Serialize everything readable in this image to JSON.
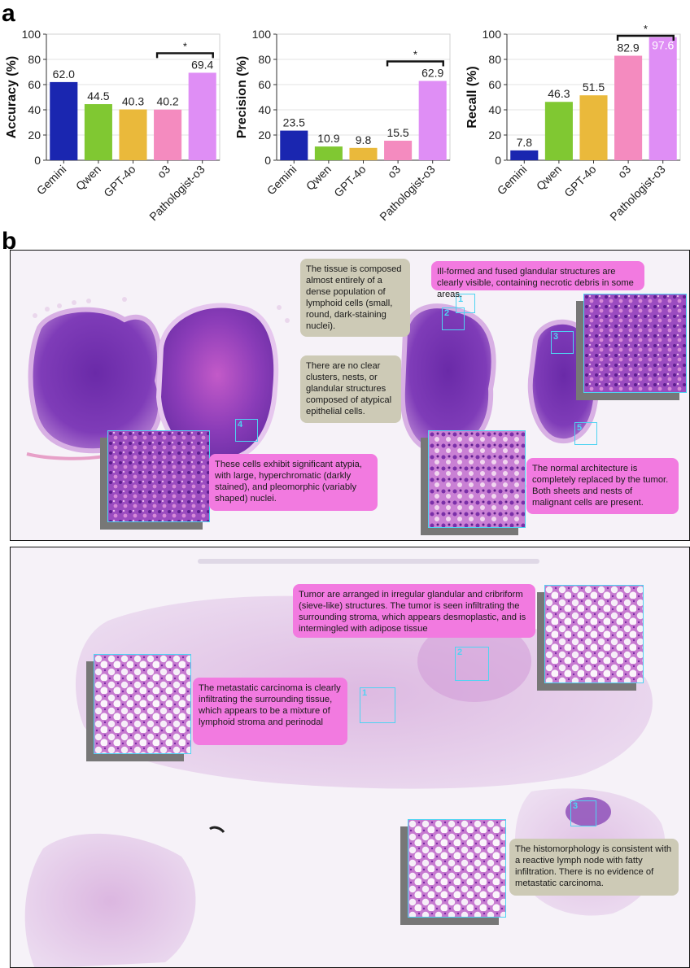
{
  "panels": {
    "a": "a",
    "b": "b"
  },
  "chart_data": [
    {
      "type": "bar",
      "categories": [
        "Gemini",
        "Qwen",
        "GPT-4o",
        "o3",
        "Pathologist-o3"
      ],
      "values": [
        62.0,
        44.5,
        40.3,
        40.2,
        69.4
      ],
      "value_labels": [
        "62.0",
        "44.5",
        "40.3",
        "40.2",
        "69.4"
      ],
      "ylabel": "Accuracy (%)",
      "ylim": [
        0,
        100
      ],
      "yticks": [
        "0",
        "20",
        "40",
        "60",
        "80",
        "100"
      ],
      "grid": true,
      "colors": [
        "#1a26b0",
        "#80c832",
        "#eab93b",
        "#f48bbf",
        "#df8ef5"
      ],
      "significance": {
        "from": 3,
        "to": 4,
        "label": "*"
      }
    },
    {
      "type": "bar",
      "categories": [
        "Gemini",
        "Qwen",
        "GPT-4o",
        "o3",
        "Pathologist-o3"
      ],
      "values": [
        23.5,
        10.9,
        9.8,
        15.5,
        62.9
      ],
      "value_labels": [
        "23.5",
        "10.9",
        "9.8",
        "15.5",
        "62.9"
      ],
      "ylabel": "Precision (%)",
      "ylim": [
        0,
        100
      ],
      "yticks": [
        "0",
        "20",
        "40",
        "60",
        "80",
        "100"
      ],
      "grid": true,
      "colors": [
        "#1a26b0",
        "#80c832",
        "#eab93b",
        "#f48bbf",
        "#df8ef5"
      ],
      "significance": {
        "from": 3,
        "to": 4,
        "label": "*"
      }
    },
    {
      "type": "bar",
      "categories": [
        "Gemini",
        "Qwen",
        "GPT-4o",
        "o3",
        "Pathologist-o3"
      ],
      "values": [
        7.8,
        46.3,
        51.5,
        82.9,
        97.6
      ],
      "value_labels": [
        "7.8",
        "46.3",
        "51.5",
        "82.9",
        "97.6"
      ],
      "ylabel": "Recall (%)",
      "ylim": [
        0,
        100
      ],
      "yticks": [
        "0",
        "20",
        "40",
        "60",
        "80",
        "100"
      ],
      "grid": true,
      "colors": [
        "#1a26b0",
        "#80c832",
        "#eab93b",
        "#f48bbf",
        "#df8ef5"
      ],
      "significance": {
        "from": 3,
        "to": 4,
        "label": "*"
      }
    }
  ],
  "slide1": {
    "callouts": {
      "c1": "The tissue is composed almost entirely of a dense population of lymphoid cells (small, round, dark-staining nuclei).",
      "c2": "Ill-formed and fused glandular structures are clearly visible, containing necrotic debris in some areas.",
      "c3": "There are no clear clusters, nests, or glandular structures composed of atypical epithelial cells.",
      "c4": "These cells exhibit significant atypia, with large, hyperchromatic (darkly stained), and pleomorphic (variably shaped) nuclei.",
      "c5": "The normal architecture is completely replaced by the tumor. Both sheets and nests of malignant cells are present."
    },
    "roi_labels": [
      "1",
      "2",
      "3",
      "4",
      "5"
    ]
  },
  "slide2": {
    "callouts": {
      "c1": "Tumor are arranged in irregular glandular and cribriform (sieve-like) structures. The tumor is seen infiltrating the surrounding stroma, which appears desmoplastic, and is intermingled with adipose tissue",
      "c2": "The metastatic carcinoma is clearly infiltrating the surrounding tissue, which appears to be a mixture of lymphoid stroma and perinodal",
      "c3": "The histomorphology is consistent with a reactive lymph node with fatty infiltration. There is no evidence of metastatic carcinoma."
    },
    "roi_labels": [
      "1",
      "2",
      "3"
    ]
  }
}
